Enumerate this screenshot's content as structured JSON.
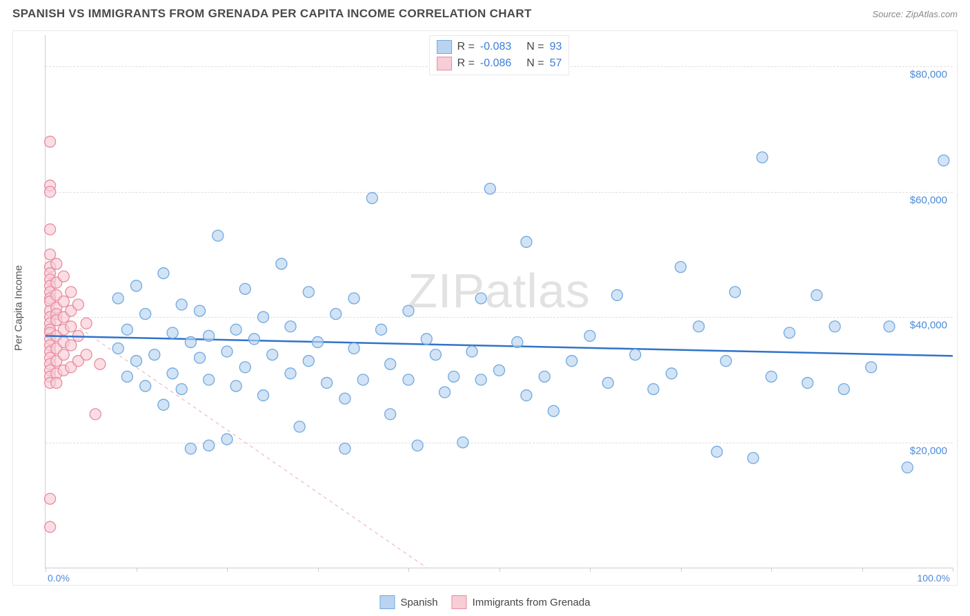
{
  "header": {
    "title": "SPANISH VS IMMIGRANTS FROM GRENADA PER CAPITA INCOME CORRELATION CHART",
    "source": "Source: ZipAtlas.com"
  },
  "chart": {
    "type": "scatter",
    "xlim": [
      0,
      100
    ],
    "ylim": [
      0,
      85000
    ],
    "y_axis_label": "Per Capita Income",
    "y_ticks": [
      20000,
      40000,
      60000,
      80000
    ],
    "y_tick_labels": [
      "$20,000",
      "$40,000",
      "$60,000",
      "$80,000"
    ],
    "x_ticks": [
      0,
      10,
      20,
      30,
      40,
      50,
      60,
      70,
      80,
      90,
      100
    ],
    "x_min_label": "0.0%",
    "x_max_label": "100.0%",
    "grid_color": "#dddddd",
    "axis_color": "#cccccc",
    "background_color": "#ffffff",
    "watermark_text": "ZIPatlas",
    "watermark_color": "#cccccc",
    "marker_radius": 8,
    "marker_stroke_width": 1.3,
    "series": [
      {
        "name": "Spanish",
        "fill": "#b9d4f0",
        "stroke": "#6fa8e0",
        "r_value": "-0.083",
        "n_value": "93",
        "trend": {
          "x1": 0,
          "y1": 37000,
          "x2": 100,
          "y2": 33800,
          "color": "#2f73c9",
          "width": 2.5,
          "dash": "none"
        },
        "points": [
          [
            8,
            35000
          ],
          [
            8,
            43000
          ],
          [
            9,
            30500
          ],
          [
            9,
            38000
          ],
          [
            10,
            33000
          ],
          [
            10,
            45000
          ],
          [
            11,
            29000
          ],
          [
            11,
            40500
          ],
          [
            12,
            34000
          ],
          [
            13,
            47000
          ],
          [
            13,
            26000
          ],
          [
            14,
            37500
          ],
          [
            14,
            31000
          ],
          [
            15,
            42000
          ],
          [
            15,
            28500
          ],
          [
            16,
            36000
          ],
          [
            16,
            19000
          ],
          [
            17,
            33500
          ],
          [
            17,
            41000
          ],
          [
            18,
            37000
          ],
          [
            18,
            30000
          ],
          [
            18,
            19500
          ],
          [
            19,
            53000
          ],
          [
            20,
            20500
          ],
          [
            20,
            34500
          ],
          [
            21,
            38000
          ],
          [
            21,
            29000
          ],
          [
            22,
            44500
          ],
          [
            22,
            32000
          ],
          [
            23,
            36500
          ],
          [
            24,
            27500
          ],
          [
            24,
            40000
          ],
          [
            25,
            34000
          ],
          [
            26,
            48500
          ],
          [
            27,
            31000
          ],
          [
            27,
            38500
          ],
          [
            28,
            22500
          ],
          [
            29,
            33000
          ],
          [
            29,
            44000
          ],
          [
            30,
            36000
          ],
          [
            31,
            29500
          ],
          [
            32,
            40500
          ],
          [
            33,
            27000
          ],
          [
            33,
            19000
          ],
          [
            34,
            43000
          ],
          [
            34,
            35000
          ],
          [
            35,
            30000
          ],
          [
            36,
            59000
          ],
          [
            37,
            38000
          ],
          [
            38,
            24500
          ],
          [
            38,
            32500
          ],
          [
            40,
            41000
          ],
          [
            40,
            30000
          ],
          [
            41,
            19500
          ],
          [
            42,
            36500
          ],
          [
            43,
            34000
          ],
          [
            44,
            28000
          ],
          [
            45,
            30500
          ],
          [
            46,
            20000
          ],
          [
            47,
            34500
          ],
          [
            48,
            43000
          ],
          [
            48,
            30000
          ],
          [
            49,
            60500
          ],
          [
            50,
            31500
          ],
          [
            52,
            36000
          ],
          [
            53,
            27500
          ],
          [
            53,
            52000
          ],
          [
            55,
            30500
          ],
          [
            56,
            25000
          ],
          [
            58,
            33000
          ],
          [
            60,
            37000
          ],
          [
            62,
            29500
          ],
          [
            63,
            43500
          ],
          [
            65,
            34000
          ],
          [
            67,
            28500
          ],
          [
            69,
            31000
          ],
          [
            70,
            48000
          ],
          [
            72,
            38500
          ],
          [
            74,
            18500
          ],
          [
            75,
            33000
          ],
          [
            76,
            44000
          ],
          [
            78,
            17500
          ],
          [
            79,
            65500
          ],
          [
            80,
            30500
          ],
          [
            82,
            37500
          ],
          [
            84,
            29500
          ],
          [
            85,
            43500
          ],
          [
            87,
            38500
          ],
          [
            88,
            28500
          ],
          [
            91,
            32000
          ],
          [
            93,
            38500
          ],
          [
            95,
            16000
          ],
          [
            99,
            65000
          ]
        ]
      },
      {
        "name": "Immigrants from Grenada",
        "fill": "#f7cdd6",
        "stroke": "#e88ba1",
        "r_value": "-0.086",
        "n_value": "57",
        "trend": {
          "x1": 0,
          "y1": 42000,
          "x2": 42,
          "y2": 0,
          "color": "#f0b8c3",
          "width": 1.2,
          "dash": "5,5"
        },
        "points": [
          [
            0.5,
            68000
          ],
          [
            0.5,
            61000
          ],
          [
            0.5,
            60000
          ],
          [
            0.5,
            54000
          ],
          [
            0.5,
            50000
          ],
          [
            0.5,
            48000
          ],
          [
            0.5,
            47000
          ],
          [
            0.5,
            46000
          ],
          [
            0.5,
            45000
          ],
          [
            0.5,
            44000
          ],
          [
            0.5,
            43000
          ],
          [
            0.5,
            42500
          ],
          [
            0.5,
            41000
          ],
          [
            0.5,
            40000
          ],
          [
            0.5,
            39000
          ],
          [
            0.5,
            38000
          ],
          [
            0.5,
            37500
          ],
          [
            0.5,
            36500
          ],
          [
            0.5,
            35500
          ],
          [
            0.5,
            34500
          ],
          [
            0.5,
            33500
          ],
          [
            0.5,
            32500
          ],
          [
            0.5,
            31500
          ],
          [
            0.5,
            30500
          ],
          [
            0.5,
            29500
          ],
          [
            0.5,
            11000
          ],
          [
            0.5,
            6500
          ],
          [
            1.2,
            48500
          ],
          [
            1.2,
            45500
          ],
          [
            1.2,
            43500
          ],
          [
            1.2,
            41500
          ],
          [
            1.2,
            40500
          ],
          [
            1.2,
            39500
          ],
          [
            1.2,
            37000
          ],
          [
            1.2,
            35000
          ],
          [
            1.2,
            33000
          ],
          [
            1.2,
            31000
          ],
          [
            1.2,
            29500
          ],
          [
            2,
            46500
          ],
          [
            2,
            42500
          ],
          [
            2,
            40000
          ],
          [
            2,
            38000
          ],
          [
            2,
            36000
          ],
          [
            2,
            34000
          ],
          [
            2,
            31500
          ],
          [
            2.8,
            44000
          ],
          [
            2.8,
            41000
          ],
          [
            2.8,
            38500
          ],
          [
            2.8,
            35500
          ],
          [
            2.8,
            32000
          ],
          [
            3.6,
            42000
          ],
          [
            3.6,
            37000
          ],
          [
            3.6,
            33000
          ],
          [
            4.5,
            39000
          ],
          [
            4.5,
            34000
          ],
          [
            5.5,
            24500
          ],
          [
            6,
            32500
          ]
        ]
      }
    ]
  },
  "stat_legend": {
    "r_label": "R =",
    "n_label": "N ="
  },
  "bottom_legend": {
    "items": [
      "Spanish",
      "Immigrants from Grenada"
    ]
  }
}
